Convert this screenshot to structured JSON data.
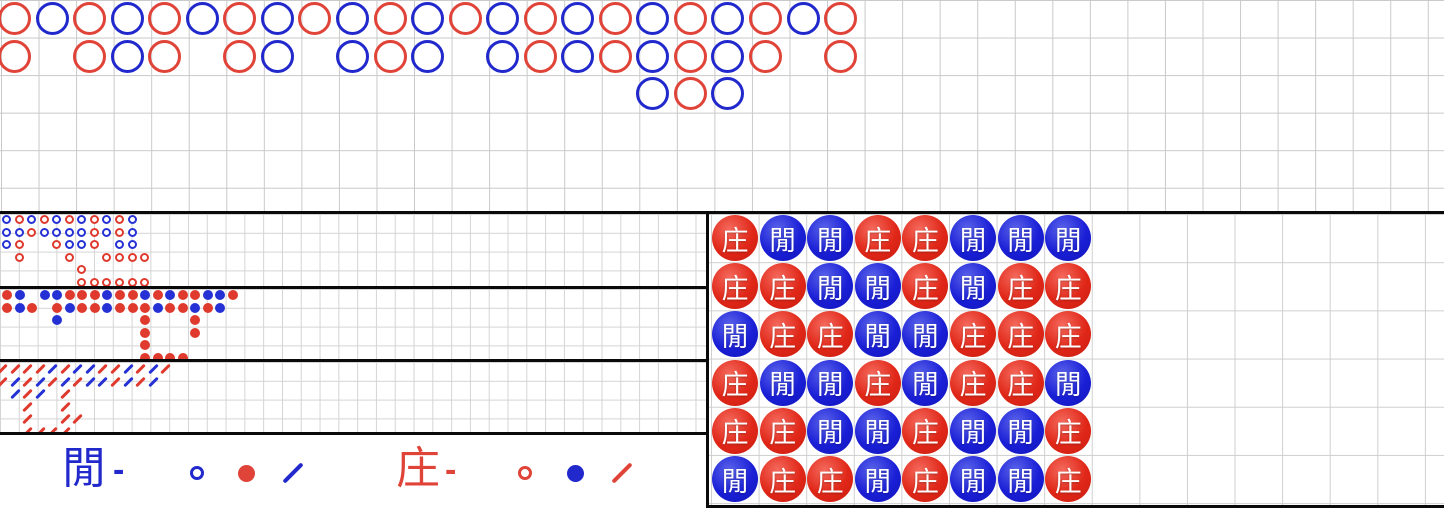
{
  "colors": {
    "road_red": "#e04338",
    "road_blue": "#2129cc",
    "bead_red": "#e02718",
    "bead_blue": "#1a1fd6",
    "grid_line": "#c9c9c9",
    "divider": "#0a0a0a"
  },
  "big_road": {
    "red_means": "庄",
    "blue_means": "閒",
    "columns": [
      {
        "c": "r",
        "n": 2
      },
      {
        "c": "b",
        "n": 1
      },
      {
        "c": "r",
        "n": 2
      },
      {
        "c": "b",
        "n": 2
      },
      {
        "c": "r",
        "n": 2
      },
      {
        "c": "b",
        "n": 1
      },
      {
        "c": "r",
        "n": 2
      },
      {
        "c": "b",
        "n": 2
      },
      {
        "c": "r",
        "n": 1
      },
      {
        "c": "b",
        "n": 2
      },
      {
        "c": "r",
        "n": 2
      },
      {
        "c": "b",
        "n": 2
      },
      {
        "c": "r",
        "n": 1
      },
      {
        "c": "b",
        "n": 2
      },
      {
        "c": "r",
        "n": 2
      },
      {
        "c": "b",
        "n": 2
      },
      {
        "c": "r",
        "n": 2
      },
      {
        "c": "b",
        "n": 3
      },
      {
        "c": "r",
        "n": 3
      },
      {
        "c": "b",
        "n": 3
      },
      {
        "c": "r",
        "n": 2
      },
      {
        "c": "b",
        "n": 1
      },
      {
        "c": "r",
        "n": 2
      }
    ]
  },
  "big_eye_road": {
    "rows": [
      "brbrbrbrbrb.",
      "bbrbbbbrbrb.",
      "br..rbbr.bb.",
      ".r...r..rrrr",
      "......r.....",
      "......rrrrrr"
    ]
  },
  "small_road": {
    "rows": [
      "rb.bbrrrbrrbrbrrbbr",
      "rbr.rbrrbrrrbrrbrb.",
      "....b......r...r...",
      "...........r...r...",
      "...........r......",
      "...........rrrr..."
    ]
  },
  "cockroach_road": {
    "rows": [
      "rrrrbrbbrrbrbr",
      "rbrbrbrbbrbrb.",
      ".brb.r........",
      "..r..r........",
      "..r..rr.......",
      "..rrrr........"
    ]
  },
  "legend": {
    "player": {
      "label": "閒",
      "dash": "-",
      "hollow": "blue",
      "solid": "red",
      "slash": "blue"
    },
    "banker": {
      "label": "庄",
      "dash": "-",
      "hollow": "red",
      "solid": "blue",
      "slash": "red"
    }
  },
  "bead_plate": {
    "banker_char": "庄",
    "player_char": "閒",
    "rows": [
      "庄閒閒庄庄閒閒閒",
      "庄庄閒閒庄閒庄庄",
      "閒庄庄閒閒庄庄庄",
      "庄閒閒庄閒庄庄閒",
      "庄庄閒閒庄閒閒庄",
      "閒庄庄閒庄閒閒庄"
    ]
  }
}
